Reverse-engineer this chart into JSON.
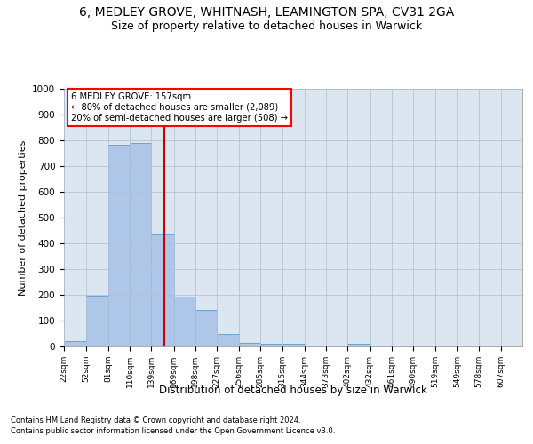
{
  "title1": "6, MEDLEY GROVE, WHITNASH, LEAMINGTON SPA, CV31 2GA",
  "title2": "Size of property relative to detached houses in Warwick",
  "xlabel": "Distribution of detached houses by size in Warwick",
  "ylabel": "Number of detached properties",
  "footnote1": "Contains HM Land Registry data © Crown copyright and database right 2024.",
  "footnote2": "Contains public sector information licensed under the Open Government Licence v3.0.",
  "annotation_line1": "6 MEDLEY GROVE: 157sqm",
  "annotation_line2": "← 80% of detached houses are smaller (2,089)",
  "annotation_line3": "20% of semi-detached houses are larger (508) →",
  "bar_left_edges": [
    22,
    52,
    81,
    110,
    139,
    169,
    198,
    227,
    256,
    285,
    315,
    344,
    373,
    402,
    432,
    461,
    490,
    519,
    549,
    578
  ],
  "bar_widths": [
    30,
    29,
    29,
    29,
    30,
    29,
    29,
    29,
    29,
    30,
    29,
    29,
    29,
    30,
    29,
    29,
    29,
    30,
    29,
    29
  ],
  "bar_heights": [
    20,
    195,
    782,
    790,
    435,
    192,
    140,
    50,
    15,
    12,
    12,
    0,
    0,
    10,
    0,
    0,
    0,
    0,
    0,
    0
  ],
  "bar_color": "#aec7e8",
  "bar_edge_color": "#5b9bd5",
  "vline_x": 157,
  "vline_color": "#cc0000",
  "ylim": [
    0,
    1000
  ],
  "yticks": [
    0,
    100,
    200,
    300,
    400,
    500,
    600,
    700,
    800,
    900,
    1000
  ],
  "xtick_labels": [
    "22sqm",
    "52sqm",
    "81sqm",
    "110sqm",
    "139sqm",
    "169sqm",
    "198sqm",
    "227sqm",
    "256sqm",
    "285sqm",
    "315sqm",
    "344sqm",
    "373sqm",
    "402sqm",
    "432sqm",
    "461sqm",
    "490sqm",
    "519sqm",
    "549sqm",
    "578sqm",
    "607sqm"
  ],
  "xtick_positions": [
    22,
    52,
    81,
    110,
    139,
    169,
    198,
    227,
    256,
    285,
    315,
    344,
    373,
    402,
    432,
    461,
    490,
    519,
    549,
    578,
    607
  ],
  "background_color": "#ffffff",
  "plot_bg_color": "#dce6f0",
  "grid_color": "#b0c4d8",
  "title1_fontsize": 10,
  "title2_fontsize": 9
}
